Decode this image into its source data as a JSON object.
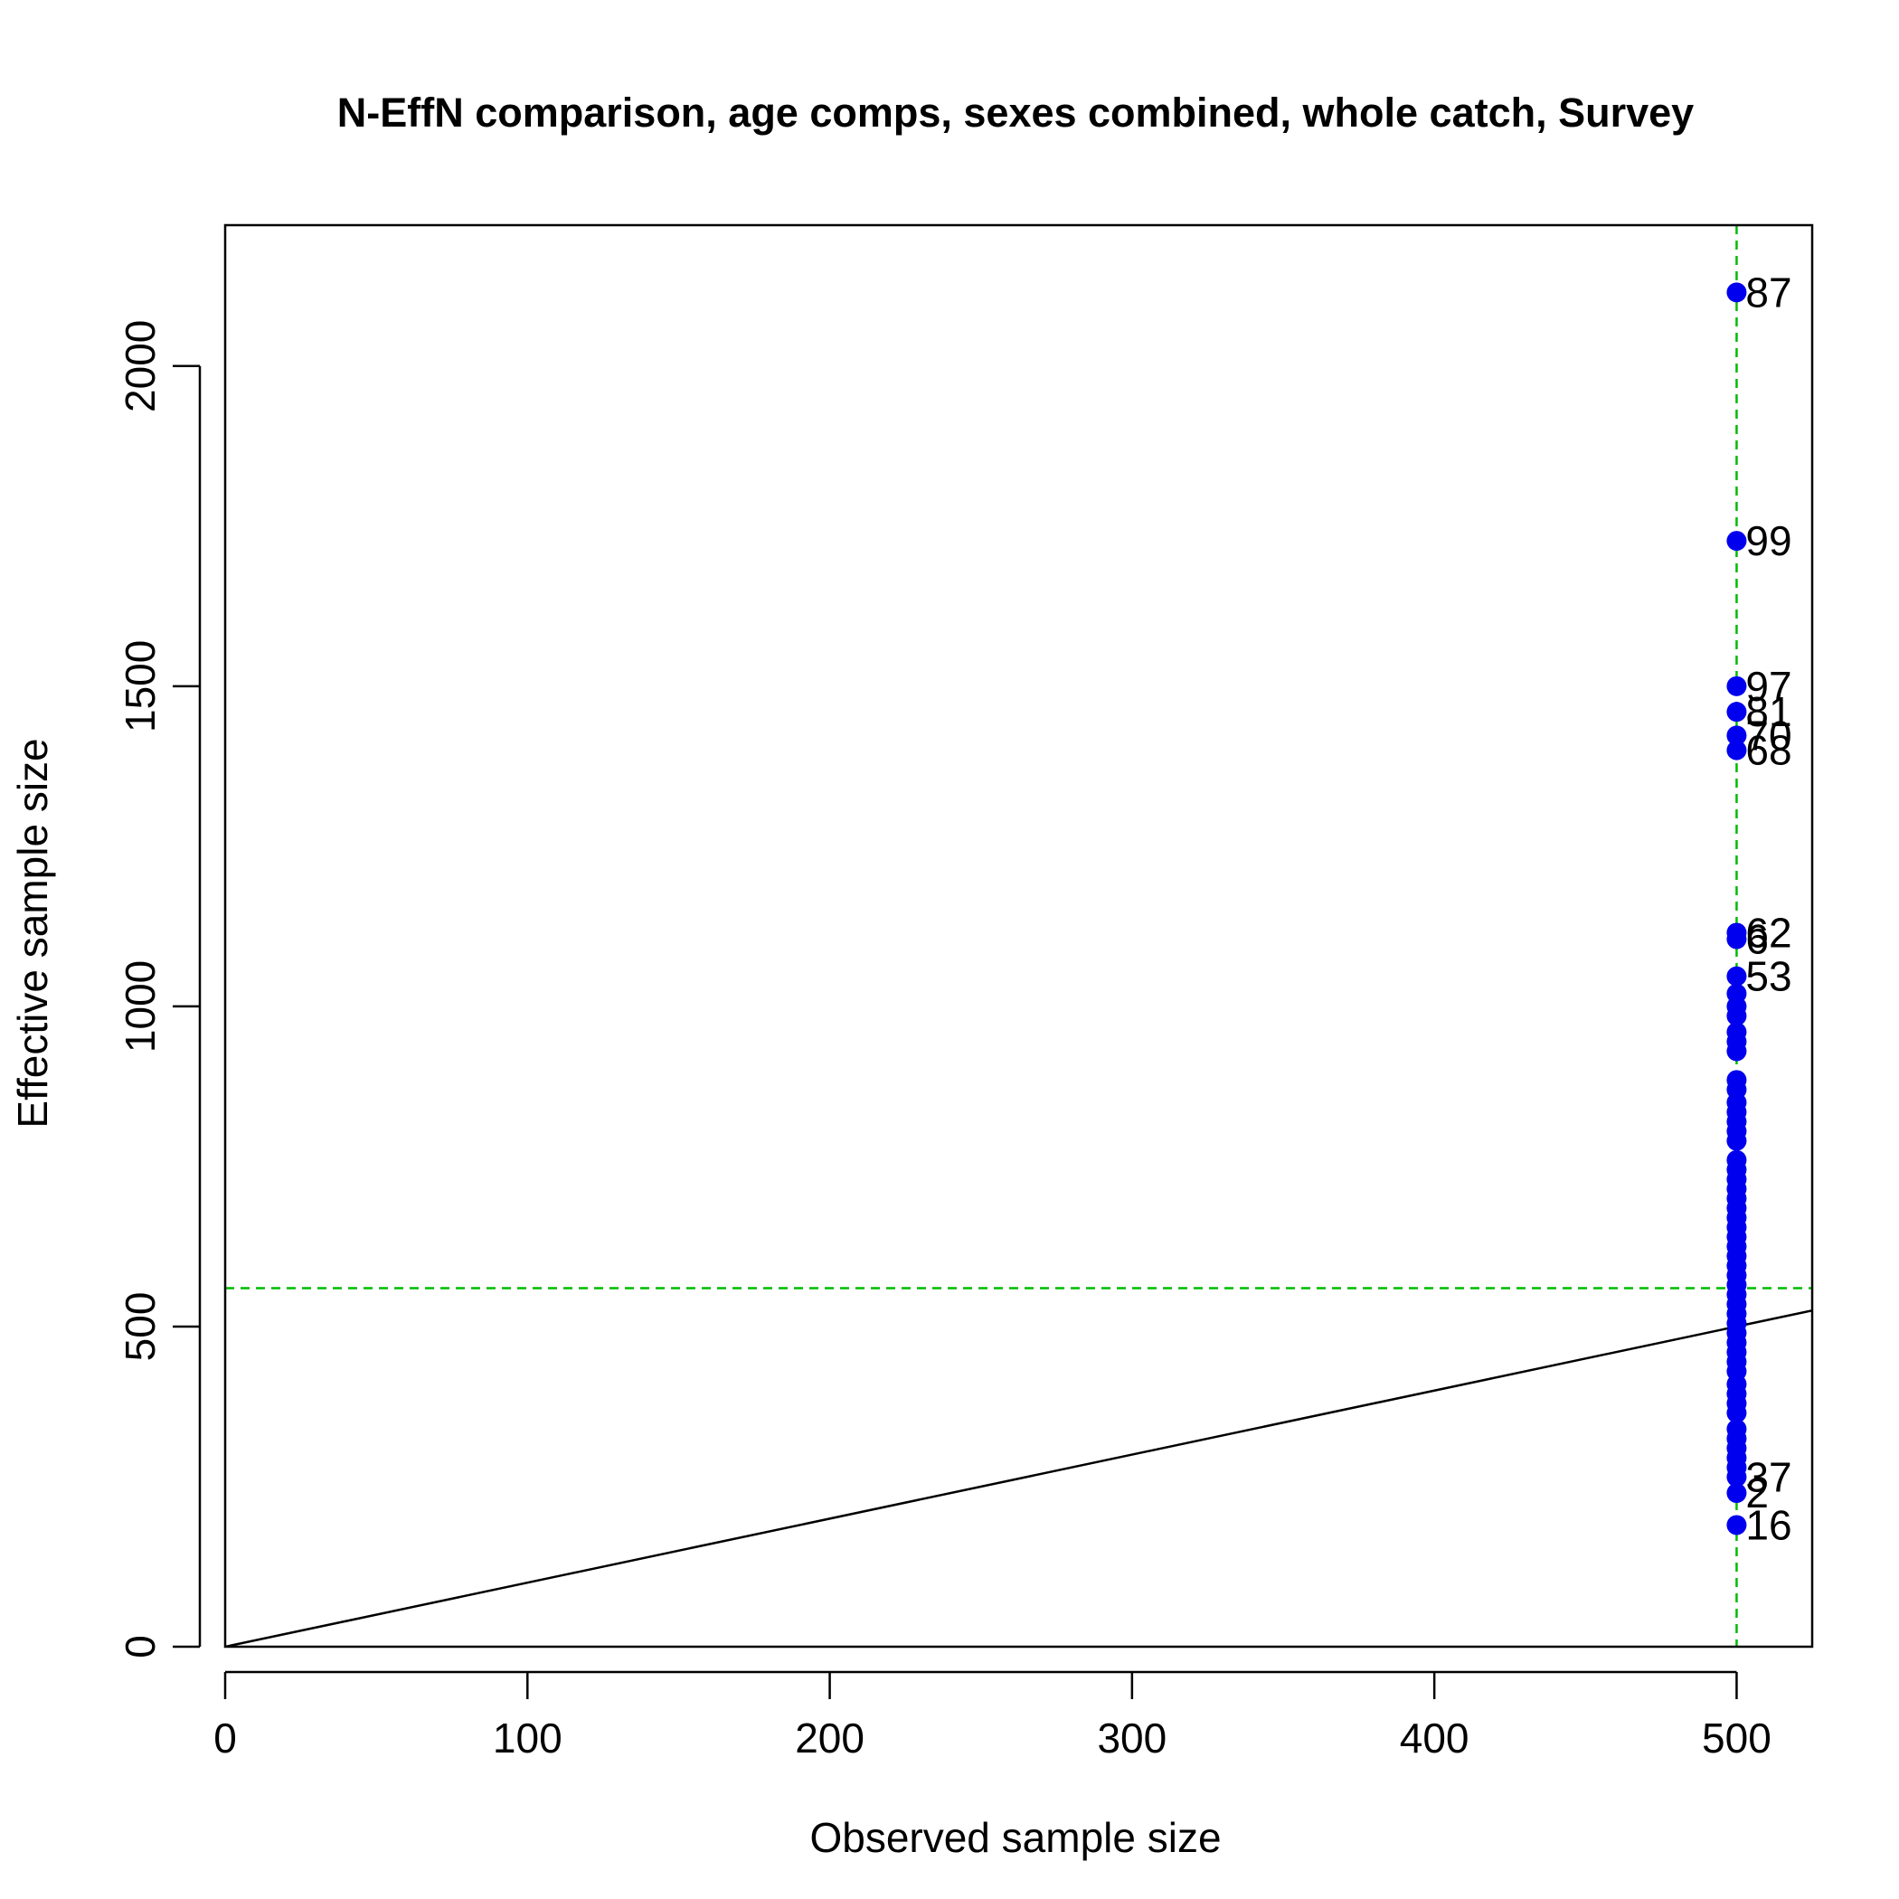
{
  "chart_data": {
    "type": "scatter",
    "title": "N-EffN comparison, age comps, sexes combined, whole catch, Survey",
    "xlabel": "Observed sample size",
    "ylabel": "Effective sample size",
    "xlim": [
      0,
      525
    ],
    "ylim": [
      0,
      2220
    ],
    "x_ticks": [
      0,
      100,
      200,
      300,
      400,
      500
    ],
    "y_ticks": [
      0,
      500,
      1000,
      1500,
      2000
    ],
    "x_tick_labels": [
      "0",
      "100",
      "200",
      "300",
      "400",
      "500"
    ],
    "y_tick_labels": [
      "0",
      "500",
      "1000",
      "1500",
      "2000"
    ],
    "grid": false,
    "reference_line": {
      "slope": 1,
      "intercept": 0
    },
    "mean_lines": {
      "x": 500,
      "y": 560
    },
    "colors": {
      "points": "#0000ee",
      "mean_lines": "#00bb00",
      "reference_line": "#000000"
    },
    "labeled_points": [
      {
        "label": "87",
        "x": 500,
        "y": 2115
      },
      {
        "label": "99",
        "x": 500,
        "y": 1727
      },
      {
        "label": "97",
        "x": 500,
        "y": 1500
      },
      {
        "label": "81",
        "x": 500,
        "y": 1460
      },
      {
        "label": "70",
        "x": 500,
        "y": 1423
      },
      {
        "label": "68",
        "x": 500,
        "y": 1400
      },
      {
        "label": "62",
        "x": 500,
        "y": 1115
      },
      {
        "label": "6",
        "x": 500,
        "y": 1105
      },
      {
        "label": "53",
        "x": 500,
        "y": 1047
      },
      {
        "label": "16",
        "x": 500,
        "y": 190
      },
      {
        "label": "37",
        "x": 500,
        "y": 265
      },
      {
        "label": "2",
        "x": 500,
        "y": 240
      }
    ],
    "points_y": [
      2115,
      1727,
      1500,
      1460,
      1423,
      1400,
      1115,
      1105,
      1047,
      1020,
      1000,
      985,
      960,
      945,
      930,
      885,
      870,
      850,
      835,
      820,
      805,
      790,
      760,
      745,
      730,
      715,
      700,
      685,
      670,
      655,
      640,
      625,
      610,
      595,
      580,
      565,
      550,
      535,
      520,
      505,
      490,
      475,
      460,
      445,
      430,
      410,
      395,
      380,
      365,
      340,
      325,
      310,
      295,
      280,
      265,
      240,
      190
    ]
  }
}
